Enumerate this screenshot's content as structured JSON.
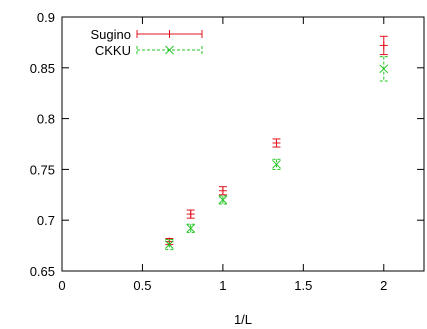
{
  "chart_data": {
    "type": "scatter",
    "title": "",
    "xlabel": "1/L",
    "ylabel": "",
    "xlim": [
      0,
      2.25
    ],
    "ylim": [
      0.65,
      0.9
    ],
    "xticks": [
      0,
      0.5,
      1,
      1.5,
      2
    ],
    "xtick_labels": [
      "0",
      "0.5",
      "1",
      "1.5",
      "2"
    ],
    "yticks": [
      0.65,
      0.7,
      0.75,
      0.8,
      0.85,
      0.9
    ],
    "ytick_labels": [
      "0.65",
      "0.7",
      "0.75",
      "0.8",
      "0.85",
      "0.9"
    ],
    "grid": false,
    "legend_position": "top-left",
    "series": [
      {
        "name": "Sugino",
        "color": "#e0141e",
        "marker": "plus",
        "line_style": "solid",
        "points": [
          {
            "x": 0.667,
            "y": 0.679,
            "err": 0.003
          },
          {
            "x": 0.8,
            "y": 0.706,
            "err": 0.004
          },
          {
            "x": 1.0,
            "y": 0.729,
            "err": 0.004
          },
          {
            "x": 1.333,
            "y": 0.776,
            "err": 0.004
          },
          {
            "x": 2.0,
            "y": 0.872,
            "err": 0.009
          }
        ]
      },
      {
        "name": "CKKU",
        "color": "#22c322",
        "marker": "cross",
        "line_style": "dashed",
        "points": [
          {
            "x": 0.667,
            "y": 0.676,
            "err": 0.005
          },
          {
            "x": 0.8,
            "y": 0.692,
            "err": 0.004
          },
          {
            "x": 1.0,
            "y": 0.72,
            "err": 0.004
          },
          {
            "x": 1.333,
            "y": 0.755,
            "err": 0.005
          },
          {
            "x": 2.0,
            "y": 0.849,
            "err": 0.012
          }
        ]
      }
    ]
  }
}
